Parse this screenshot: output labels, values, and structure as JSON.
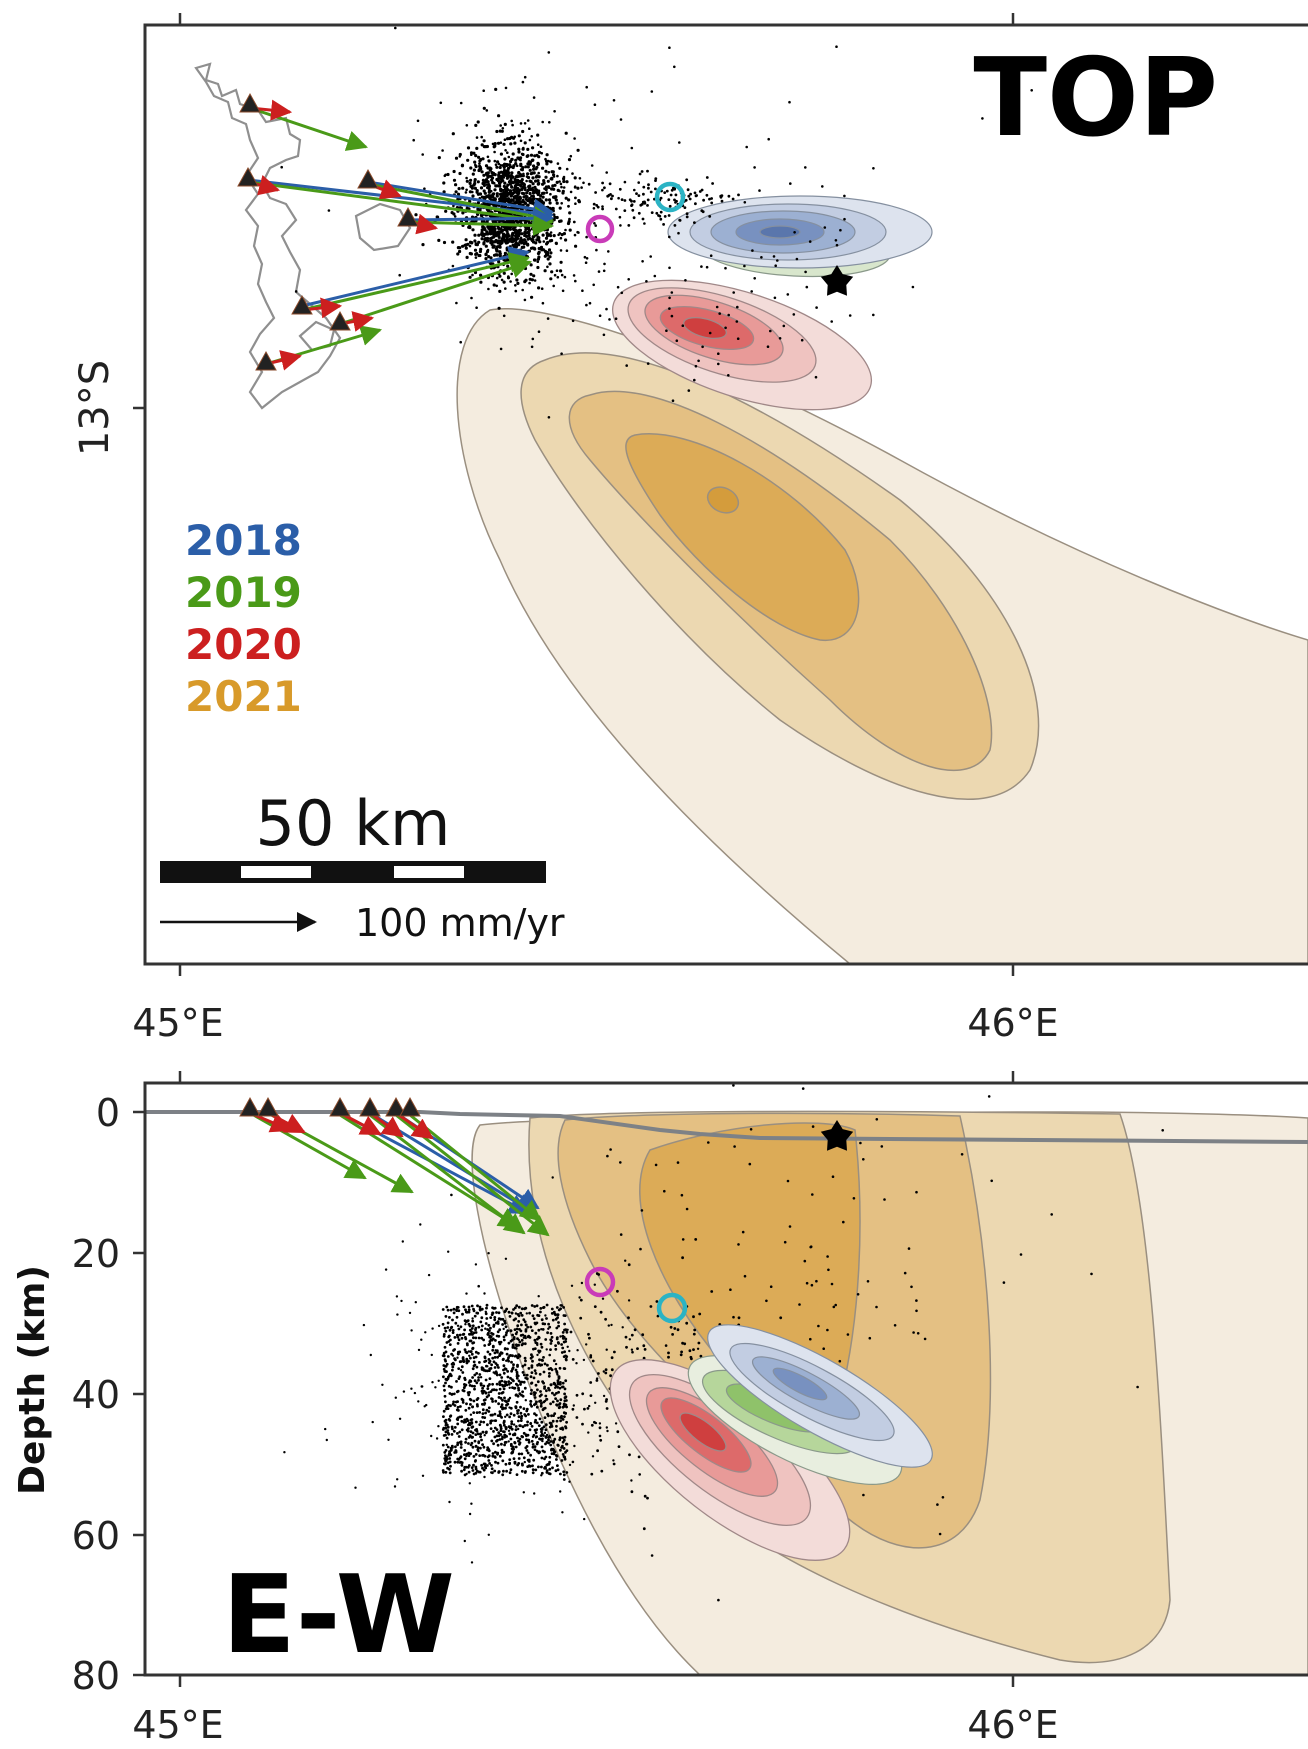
{
  "top_panel": {
    "title": "TOP",
    "y_tick_label": "13°S",
    "x_tick_labels": [
      "45°E",
      "46°E"
    ],
    "legend": [
      {
        "year": "2018",
        "color": "#2b5ea8"
      },
      {
        "year": "2019",
        "color": "#4a9a18"
      },
      {
        "year": "2020",
        "color": "#cc1f1f"
      },
      {
        "year": "2021",
        "color": "#d89a2a"
      }
    ],
    "scale_bar_label": "50 km",
    "velocity_label": "100 mm/yr"
  },
  "bottom_panel": {
    "title": "E-W",
    "y_axis_label": "Depth (km)",
    "y_tick_labels": [
      "0",
      "20",
      "40",
      "60",
      "80"
    ],
    "x_tick_labels": [
      "45°E",
      "46°E"
    ]
  },
  "colors": {
    "y2018": "#2b5ea8",
    "y2019": "#4a9a18",
    "y2020": "#cc1f1f",
    "y2021": "#d89a2a",
    "magenta_marker": "#c93bb8",
    "cyan_marker": "#2bb3c4"
  },
  "markers": [
    "black-star",
    "magenta-circle",
    "cyan-circle",
    "gnss-station-triangle"
  ]
}
